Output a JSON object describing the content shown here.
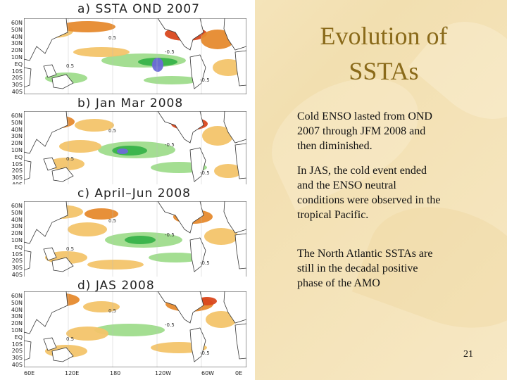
{
  "slide": {
    "title_line1": "Evolution of",
    "title_line2": "SSTAs",
    "bullets": [
      "Cold ENSO lasted from OND 2007 through JFM 2008 and then diminished.",
      "In JAS, the cold event ended and the ENSO neutral conditions were observed in the tropical Pacific.",
      "The North Atlantic SSTAs are still in the decadal positive phase of the AMO"
    ],
    "page_number": "21"
  },
  "maps": {
    "panels": [
      {
        "label": "a)  SSTA  OND  2007"
      },
      {
        "label": "b)   Jan  Mar  2008"
      },
      {
        "label": "c)  April–Jun  2008"
      },
      {
        "label": "d)  JAS  2008"
      }
    ],
    "lat_labels": [
      "60N",
      "50N",
      "40N",
      "30N",
      "20N",
      "10N",
      "EQ",
      "10S",
      "20S",
      "30S",
      "40S"
    ],
    "lon_labels": [
      "60E",
      "120E",
      "180",
      "120W",
      "60W",
      "0E"
    ],
    "contour_labels": [
      "0.5",
      "-0.5"
    ],
    "colors": {
      "warm_light": "#f3c46a",
      "warm": "#e68a2e",
      "warm_strong": "#d9481e",
      "cool_light": "#9fdc8c",
      "cool": "#38b24a",
      "cool_strong": "#6d6ad8",
      "land": "#ffffff",
      "title_color": "#8a6a1a"
    }
  }
}
